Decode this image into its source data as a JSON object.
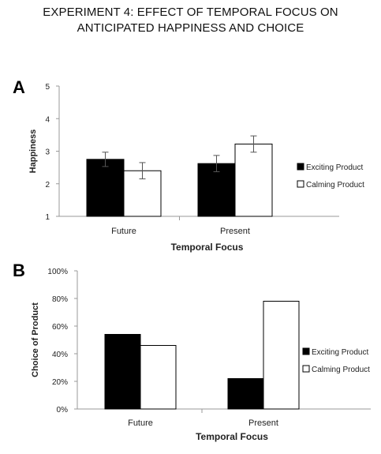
{
  "title": {
    "line1": "EXPERIMENT 4: EFFECT OF TEMPORAL FOCUS ON",
    "line2": "ANTICIPATED HAPPINESS AND CHOICE"
  },
  "colors": {
    "exciting": "#000000",
    "calming": "#ffffff",
    "axis": "#999999",
    "bar_stroke": "#000000"
  },
  "chart_data": [
    {
      "panel": "A",
      "type": "bar",
      "title": "",
      "xlabel": "Temporal Focus",
      "ylabel": "Happiness",
      "ylim": [
        1,
        5
      ],
      "yticks": [
        "1",
        "2",
        "3",
        "4",
        "5"
      ],
      "categories": [
        "Future",
        "Present"
      ],
      "series": [
        {
          "name": "Exciting Product",
          "values": [
            2.75,
            2.62
          ],
          "error": [
            0.22,
            0.25
          ]
        },
        {
          "name": "Calming Product",
          "values": [
            2.4,
            3.22
          ],
          "error": [
            0.25,
            0.25
          ]
        }
      ],
      "legend": "right",
      "grid": false
    },
    {
      "panel": "B",
      "type": "bar",
      "title": "",
      "xlabel": "Temporal Focus",
      "ylabel": "Choice of Product",
      "ylim": [
        0,
        100
      ],
      "yticks": [
        "0%",
        "20%",
        "40%",
        "60%",
        "80%",
        "100%"
      ],
      "categories": [
        "Future",
        "Present"
      ],
      "series": [
        {
          "name": "Exciting Product",
          "values": [
            54,
            22
          ]
        },
        {
          "name": "Calming Product",
          "values": [
            46,
            78
          ]
        }
      ],
      "legend": "right",
      "grid": false
    }
  ]
}
